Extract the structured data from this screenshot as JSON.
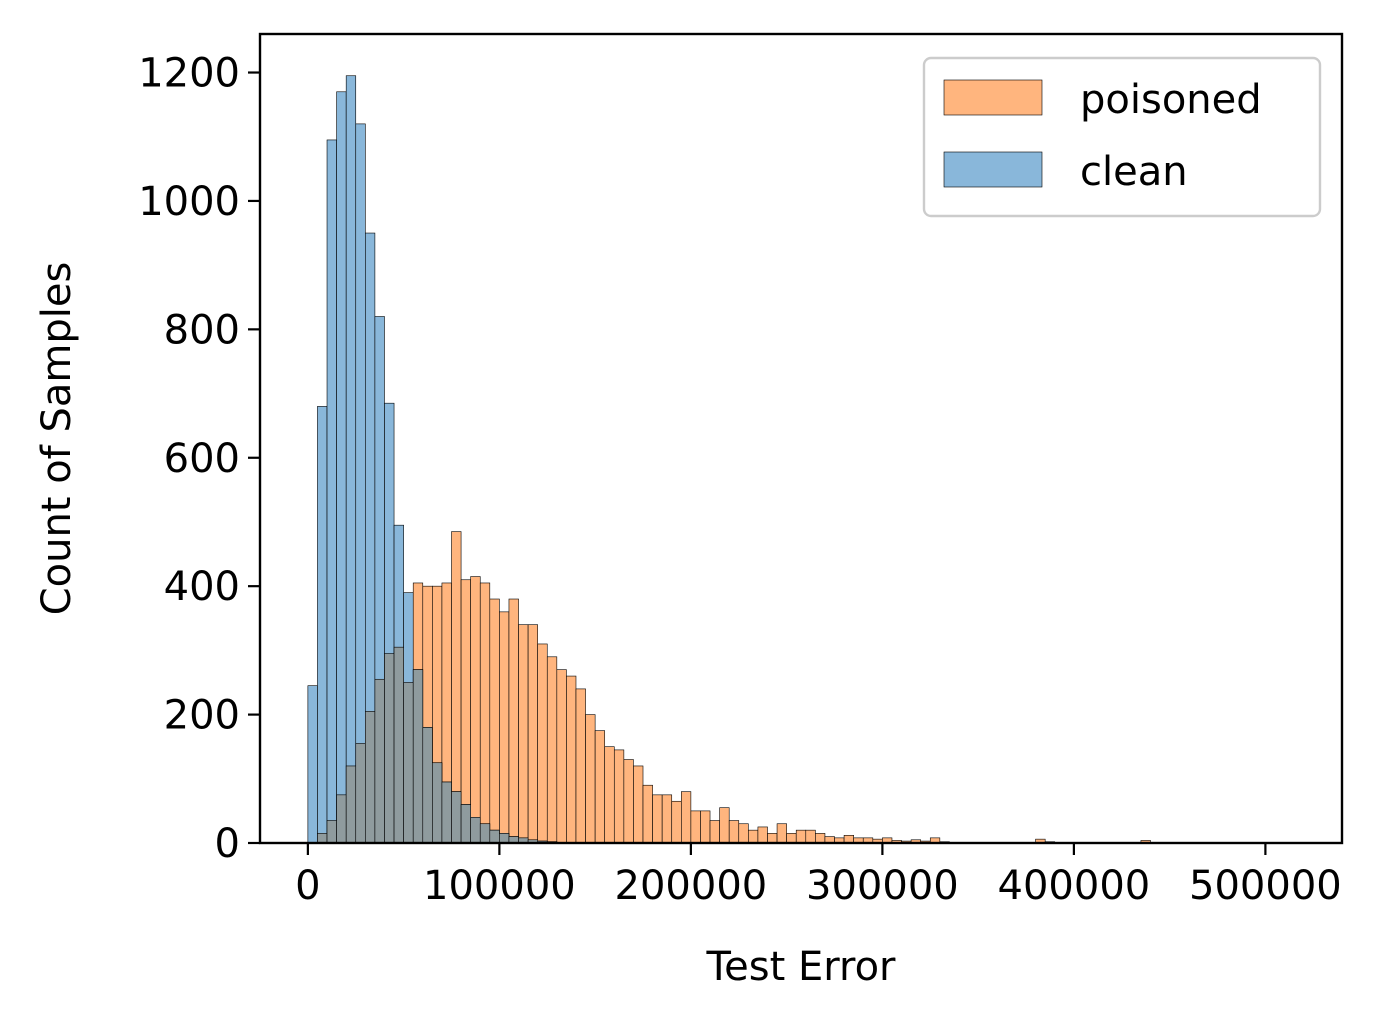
{
  "chart_data": {
    "type": "histogram",
    "xlabel": "Test Error",
    "ylabel": "Count of Samples",
    "xlim": [
      -25000,
      540000
    ],
    "ylim": [
      0,
      1260
    ],
    "x_ticks": [
      0,
      100000,
      200000,
      300000,
      400000,
      500000
    ],
    "y_ticks": [
      0,
      200,
      400,
      600,
      800,
      1000,
      1200
    ],
    "bin_width": 5000,
    "legend_position": "top-right",
    "legend": [
      {
        "label": "poisoned",
        "color": "#ffb57e"
      },
      {
        "label": "clean",
        "color": "#89b7da"
      }
    ],
    "series": [
      {
        "name": "poisoned",
        "color": "#ffb57e",
        "bin_start": 5000,
        "values": [
          15,
          35,
          75,
          120,
          155,
          205,
          255,
          295,
          305,
          250,
          405,
          400,
          400,
          405,
          485,
          410,
          415,
          405,
          380,
          360,
          380,
          340,
          340,
          310,
          290,
          270,
          260,
          240,
          200,
          175,
          150,
          145,
          130,
          120,
          90,
          75,
          75,
          65,
          80,
          50,
          50,
          35,
          55,
          35,
          30,
          20,
          25,
          15,
          30,
          15,
          20,
          20,
          15,
          10,
          8,
          12,
          8,
          8,
          6,
          8,
          4,
          3,
          5,
          3,
          8,
          2,
          1,
          1,
          1,
          1,
          1,
          1,
          1,
          1,
          1,
          6,
          2,
          1,
          1,
          1,
          1,
          1,
          1,
          1,
          1,
          1,
          4,
          1,
          1,
          1,
          1,
          1,
          1,
          1,
          1,
          1,
          1,
          1,
          1,
          1
        ]
      },
      {
        "name": "clean",
        "color": "#89b7da",
        "bin_start": 0,
        "values": [
          245,
          680,
          1095,
          1170,
          1195,
          1120,
          950,
          820,
          685,
          495,
          390,
          270,
          180,
          125,
          95,
          80,
          60,
          40,
          30,
          20,
          15,
          10,
          8,
          5,
          3,
          2,
          1
        ]
      }
    ]
  }
}
